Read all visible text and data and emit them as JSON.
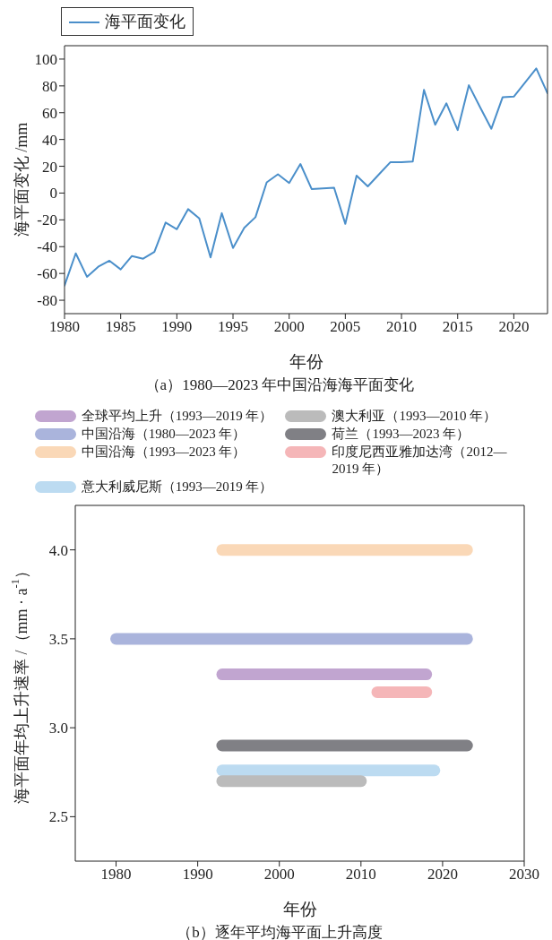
{
  "chart_data": [
    {
      "type": "line",
      "x": [
        1980,
        1981,
        1982,
        1983,
        1984,
        1985,
        1986,
        1987,
        1988,
        1989,
        1990,
        1991,
        1992,
        1993,
        1994,
        1995,
        1996,
        1997,
        1998,
        1999,
        2000,
        2001,
        2002,
        2003,
        2004,
        2005,
        2006,
        2007,
        2008,
        2009,
        2010,
        2011,
        2012,
        2013,
        2014,
        2015,
        2016,
        2017,
        2018,
        2019,
        2020,
        2021,
        2022,
        2023
      ],
      "series": [
        {
          "name": "海平面变化",
          "color": "#4b8fca",
          "values": [
            -69,
            -45,
            -62.5,
            -55,
            -50.5,
            -57,
            -47,
            -49,
            -44,
            -22,
            -27,
            -12,
            -19,
            -48,
            -15,
            -41,
            -26,
            -18,
            8,
            14,
            7.5,
            21.7,
            3,
            3.5,
            4,
            -23,
            13,
            5,
            14,
            23,
            23,
            23.5,
            77,
            51,
            67,
            47,
            80.5,
            64,
            48,
            71.5,
            72,
            82.5,
            93,
            74.5
          ]
        }
      ],
      "xlabel": "年份",
      "ylabel": "海平面变化 /mm",
      "xlim": [
        1980,
        2023
      ],
      "xticks": [
        1980,
        1985,
        1990,
        1995,
        2000,
        2005,
        2010,
        2015,
        2020
      ],
      "ylim": [
        -90,
        110
      ],
      "yticks": [
        -80,
        -60,
        -40,
        -20,
        0,
        20,
        40,
        60,
        80,
        100
      ],
      "grid": false,
      "legend": "top left",
      "marker": "none",
      "annotations": [
        "（a）1980—2023 年中国沿海海平面变化"
      ]
    },
    {
      "type": "line",
      "series": [
        {
          "name": "全球平均上升（1993—2019 年）",
          "color": "#c1a5d0",
          "x": [
            1993,
            2018
          ],
          "values": [
            3.3,
            3.3
          ]
        },
        {
          "name": "中国沿海（1980—2023 年）",
          "color": "#aab4dc",
          "x": [
            1980,
            2023
          ],
          "values": [
            3.5,
            3.5
          ]
        },
        {
          "name": "中国沿海（1993—2023 年）",
          "color": "#fad8b7",
          "x": [
            1993,
            2023
          ],
          "values": [
            4.0,
            4.0
          ]
        },
        {
          "name": "意大利威尼斯（1993—2019 年）",
          "color": "#bcdbf1",
          "x": [
            1993,
            2019
          ],
          "values": [
            2.76,
            2.76
          ]
        },
        {
          "name": "澳大利亚（1993—2010 年）",
          "color": "#bbbbbb",
          "x": [
            1993,
            2010
          ],
          "values": [
            2.7,
            2.7
          ]
        },
        {
          "name": "荷兰（1993—2023 年）",
          "color": "#808085",
          "x": [
            1993,
            2023
          ],
          "values": [
            2.9,
            2.9
          ]
        },
        {
          "name": "印度尼西亚雅加达湾（2012—2019 年）",
          "color": "#f5b6b8",
          "x": [
            2012,
            2018
          ],
          "values": [
            3.2,
            3.2
          ]
        }
      ],
      "xlabel": "年份",
      "ylabel": "海平面年均上升速率 /（mm · a$^{-1}$）",
      "xlim": [
        1975,
        2030
      ],
      "xticks": [
        1980,
        1990,
        2000,
        2010,
        2020,
        2030
      ],
      "ylim": [
        2.25,
        4.25
      ],
      "yticks": [
        {
          "value": 2.5,
          "label": "2.5"
        },
        {
          "value": 3.0,
          "label": "3.0"
        },
        {
          "value": 3.5,
          "label": "3.5"
        },
        {
          "value": 4.0,
          "label": "4.0"
        }
      ],
      "grid": false,
      "legend": "top",
      "marker": "none",
      "annotations": [
        "（b）逐年平均海平面上升高度"
      ]
    }
  ]
}
